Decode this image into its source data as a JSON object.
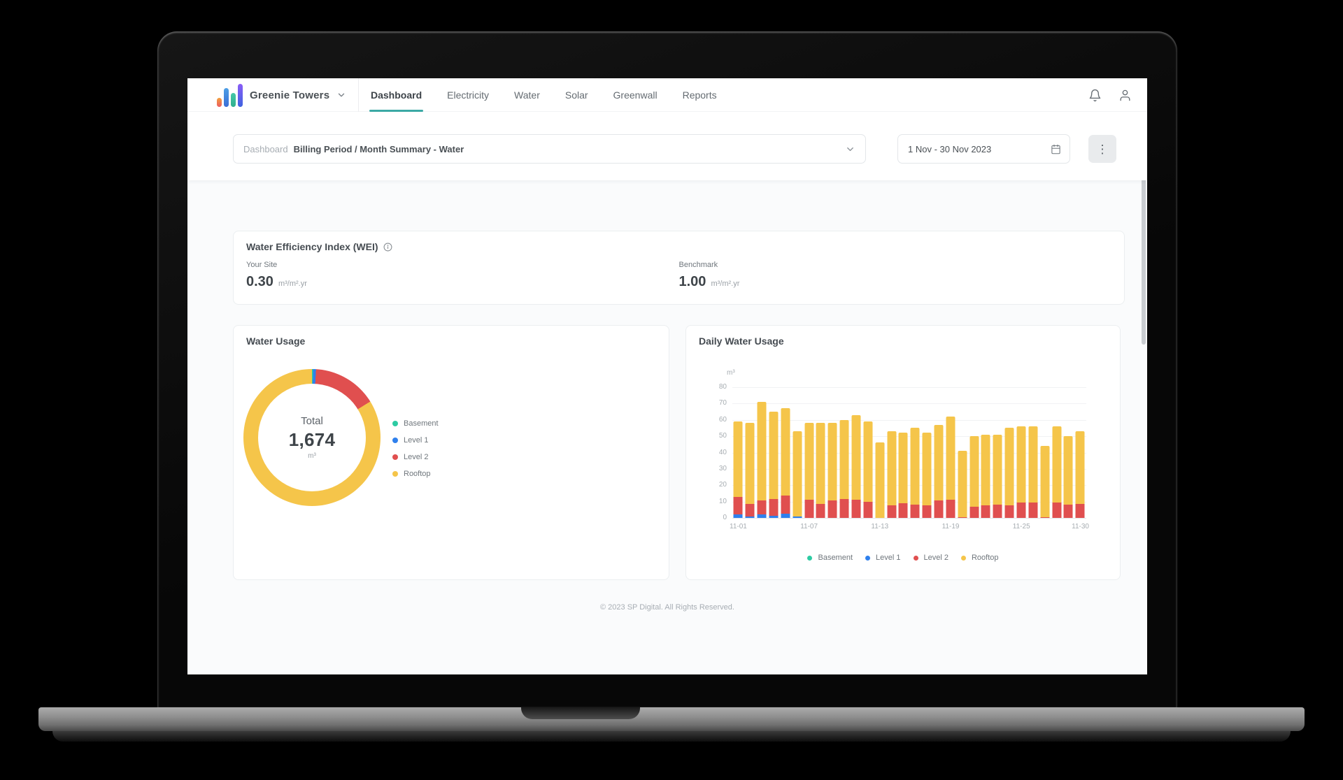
{
  "header": {
    "brand": "Greenie Towers",
    "tabs": [
      {
        "label": "Dashboard",
        "active": true
      },
      {
        "label": "Electricity",
        "active": false
      },
      {
        "label": "Water",
        "active": false
      },
      {
        "label": "Solar",
        "active": false
      },
      {
        "label": "Greenwall",
        "active": false
      },
      {
        "label": "Reports",
        "active": false
      }
    ]
  },
  "filter_bar": {
    "dashboard_label": "Dashboard",
    "dashboard_value": "Billing Period / Month Summary - Water",
    "date_range": "1 Nov - 30 Nov 2023"
  },
  "wei": {
    "title": "Water Efficiency Index (WEI)",
    "your_site_label": "Your Site",
    "your_site_value": "0.30",
    "your_site_unit": "m³/m².yr",
    "benchmark_label": "Benchmark",
    "benchmark_value": "1.00",
    "benchmark_unit": "m³/m².yr"
  },
  "colors": {
    "accent_teal": "#3BA9A5",
    "basement": "#2DCBA3",
    "level1": "#2F80ED",
    "level2": "#E04F4F",
    "rooftop": "#F5C54A"
  },
  "chart_data": [
    {
      "type": "pie",
      "title": "Water Usage",
      "center_label": "Total",
      "center_value": "1,674",
      "center_unit": "m³",
      "legend_position": "right",
      "segments": [
        {
          "name": "Basement",
          "value": 4,
          "color": "#2DCBA3"
        },
        {
          "name": "Level 1",
          "value": 12,
          "color": "#2F80ED"
        },
        {
          "name": "Level 2",
          "value": 255,
          "color": "#E04F4F"
        },
        {
          "name": "Rooftop",
          "value": 1403,
          "color": "#F5C54A"
        }
      ]
    },
    {
      "type": "bar",
      "stacked": true,
      "title": "Daily Water Usage",
      "ylabel": "m³",
      "ylim": [
        0,
        80
      ],
      "yticks": [
        0,
        10,
        20,
        30,
        40,
        50,
        60,
        70,
        80
      ],
      "grid": true,
      "legend_position": "bottom",
      "categories": [
        "11-01",
        "11-02",
        "11-03",
        "11-04",
        "11-05",
        "11-06",
        "11-07",
        "11-08",
        "11-09",
        "11-10",
        "11-11",
        "11-12",
        "11-13",
        "11-14",
        "11-15",
        "11-16",
        "11-17",
        "11-18",
        "11-19",
        "11-20",
        "11-21",
        "11-22",
        "11-23",
        "11-24",
        "11-25",
        "11-26",
        "11-27",
        "11-28",
        "11-29",
        "11-30"
      ],
      "x_tick_labels": [
        "11-01",
        "11-07",
        "11-13",
        "11-19",
        "11-25",
        "11-30"
      ],
      "series": [
        {
          "name": "Basement",
          "color": "#2DCBA3",
          "values": [
            0,
            0,
            0,
            0,
            0,
            0,
            0,
            0,
            0,
            0,
            0,
            0,
            0,
            0,
            0,
            0,
            0,
            0,
            0,
            0,
            0,
            0,
            0,
            0,
            0,
            0,
            0,
            0,
            0,
            0
          ]
        },
        {
          "name": "Level 1",
          "color": "#2F80ED",
          "values": [
            2,
            1,
            2,
            1.5,
            2.5,
            1,
            0,
            0,
            0,
            0,
            0,
            0,
            0,
            0,
            0,
            0,
            0,
            0,
            0,
            0,
            0,
            0,
            0,
            0,
            0,
            0,
            0,
            0,
            0,
            0
          ]
        },
        {
          "name": "Level 2",
          "color": "#E04F4F",
          "values": [
            11,
            7.5,
            8.5,
            10,
            11,
            0,
            11,
            8.5,
            10.5,
            11.5,
            11,
            10,
            0,
            7.5,
            9,
            8,
            7.5,
            10.5,
            11,
            0.5,
            7,
            7.5,
            8,
            7.5,
            9.5,
            9.5,
            0.5,
            9.5,
            8,
            8.5
          ]
        },
        {
          "name": "Rooftop",
          "color": "#F5C54A",
          "values": [
            46,
            49.5,
            60.5,
            53.5,
            53.5,
            52,
            47,
            49.5,
            47.5,
            48.5,
            52,
            49,
            46,
            45.5,
            43,
            47,
            44.5,
            46.5,
            51,
            40.5,
            43,
            43.5,
            43,
            47.5,
            46.5,
            46.5,
            43.5,
            46.5,
            42,
            44.5
          ]
        }
      ]
    }
  ],
  "footer": "© 2023 SP Digital. All Rights Reserved."
}
